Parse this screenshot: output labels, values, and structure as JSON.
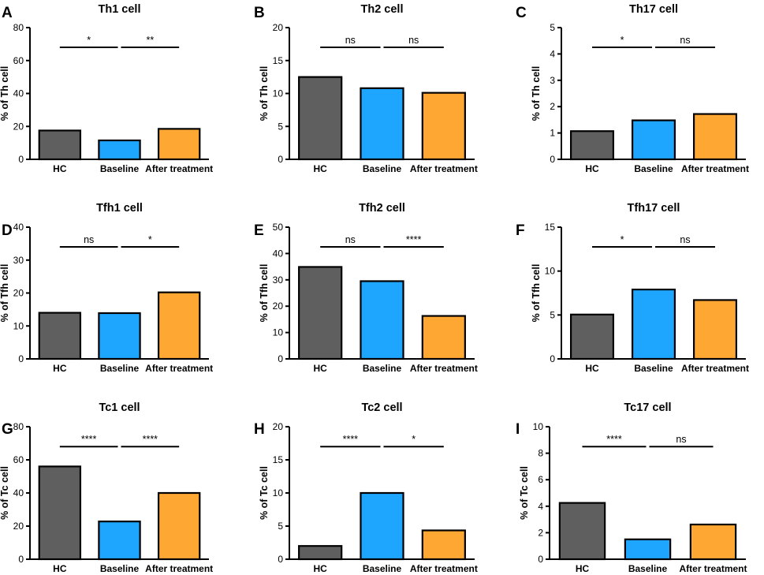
{
  "figure": {
    "colors": {
      "HC": "#5f5f5f",
      "Baseline": "#1ea6ff",
      "After treatment": "#ffa733",
      "axis": "#000000"
    }
  },
  "chart_data": [
    {
      "id": "A",
      "type": "bar",
      "title": "Th1 cell",
      "ylabel": "% of Th cell",
      "ylim": [
        0,
        80
      ],
      "yticks": [
        0,
        20,
        40,
        60,
        80
      ],
      "categories": [
        "HC",
        "Baseline",
        "After treatment"
      ],
      "values": [
        17.5,
        11.5,
        18.5
      ],
      "comparisons": [
        {
          "from": 0,
          "to": 1,
          "label": "*"
        },
        {
          "from": 1,
          "to": 2,
          "label": "**"
        }
      ]
    },
    {
      "id": "B",
      "type": "bar",
      "title": "Th2 cell",
      "ylabel": "% of Th cell",
      "ylim": [
        0,
        20
      ],
      "yticks": [
        0,
        5,
        10,
        15,
        20
      ],
      "categories": [
        "HC",
        "Baseline",
        "After treatment"
      ],
      "values": [
        12.5,
        10.8,
        10.1
      ],
      "comparisons": [
        {
          "from": 0,
          "to": 1,
          "label": "ns"
        },
        {
          "from": 1,
          "to": 2,
          "label": "ns"
        }
      ]
    },
    {
      "id": "C",
      "type": "bar",
      "title": "Th17 cell",
      "ylabel": "% of Th cell",
      "ylim": [
        0,
        5
      ],
      "yticks": [
        0,
        1,
        2,
        3,
        4,
        5
      ],
      "categories": [
        "HC",
        "Baseline",
        "After treatment"
      ],
      "values": [
        1.07,
        1.48,
        1.72
      ],
      "comparisons": [
        {
          "from": 0,
          "to": 1,
          "label": "*"
        },
        {
          "from": 1,
          "to": 2,
          "label": "ns"
        }
      ]
    },
    {
      "id": "D",
      "type": "bar",
      "title": "Tfh1 cell",
      "ylabel": "% of Tfh cell",
      "ylim": [
        0,
        40
      ],
      "yticks": [
        0,
        10,
        20,
        30,
        40
      ],
      "categories": [
        "HC",
        "Baseline",
        "After treatment"
      ],
      "values": [
        14,
        13.9,
        20.2
      ],
      "comparisons": [
        {
          "from": 0,
          "to": 1,
          "label": "ns"
        },
        {
          "from": 1,
          "to": 2,
          "label": "*"
        }
      ]
    },
    {
      "id": "E",
      "type": "bar",
      "title": "Tfh2 cell",
      "ylabel": "% of Tfh cell",
      "ylim": [
        0,
        50
      ],
      "yticks": [
        0,
        10,
        20,
        30,
        40,
        50
      ],
      "categories": [
        "HC",
        "Baseline",
        "After treatment"
      ],
      "values": [
        34.9,
        29.5,
        16.3
      ],
      "comparisons": [
        {
          "from": 0,
          "to": 1,
          "label": "ns"
        },
        {
          "from": 1,
          "to": 2,
          "label": "****"
        }
      ]
    },
    {
      "id": "F",
      "type": "bar",
      "title": "Tfh17 cell",
      "ylabel": "% of Tfh cell",
      "ylim": [
        0,
        15
      ],
      "yticks": [
        0,
        5,
        10,
        15
      ],
      "categories": [
        "HC",
        "Baseline",
        "After treatment"
      ],
      "values": [
        5.05,
        7.9,
        6.7
      ],
      "comparisons": [
        {
          "from": 0,
          "to": 1,
          "label": "*"
        },
        {
          "from": 1,
          "to": 2,
          "label": "ns"
        }
      ]
    },
    {
      "id": "G",
      "type": "bar",
      "title": "Tc1 cell",
      "ylabel": "% of Tc cell",
      "ylim": [
        0,
        80
      ],
      "yticks": [
        0,
        20,
        40,
        60,
        80
      ],
      "categories": [
        "HC",
        "Baseline",
        "After treatment"
      ],
      "values": [
        56,
        22.8,
        40
      ],
      "comparisons": [
        {
          "from": 0,
          "to": 1,
          "label": "****"
        },
        {
          "from": 1,
          "to": 2,
          "label": "****"
        }
      ]
    },
    {
      "id": "H",
      "type": "bar",
      "title": "Tc2 cell",
      "ylabel": "% of Tc cell",
      "ylim": [
        0,
        20
      ],
      "yticks": [
        0,
        5,
        10,
        15,
        20
      ],
      "categories": [
        "HC",
        "Baseline",
        "After treatment"
      ],
      "values": [
        2.0,
        10.0,
        4.35
      ],
      "comparisons": [
        {
          "from": 0,
          "to": 1,
          "label": "****"
        },
        {
          "from": 1,
          "to": 2,
          "label": "*"
        }
      ]
    },
    {
      "id": "I",
      "type": "bar",
      "title": "Tc17 cell",
      "ylabel": "% of Tc cell",
      "ylim": [
        0,
        10
      ],
      "yticks": [
        0,
        2,
        4,
        6,
        8,
        10
      ],
      "categories": [
        "HC",
        "Baseline",
        "After treatment"
      ],
      "values": [
        4.25,
        1.5,
        2.62
      ],
      "comparisons": [
        {
          "from": 0,
          "to": 1,
          "label": "****"
        },
        {
          "from": 1,
          "to": 2,
          "label": "ns"
        }
      ]
    }
  ]
}
